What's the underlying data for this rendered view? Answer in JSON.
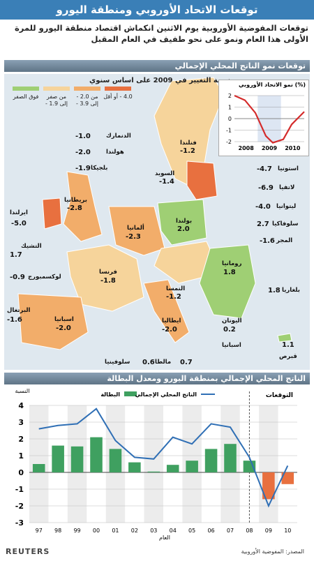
{
  "title": "توقعات الاتحاد الأوروبي ومنطقة اليورو",
  "subtitle": "توقعات المفوضية الأوروبية يوم الاثنين انكماش اقتصاد منطقة اليورو للمرة الأولى هذا العام ونمو على نحو طفيف في العام المقبل",
  "section1_title": "توقعات نمو الناتج المحلي الإجمالي",
  "legend": {
    "title": "نسبة التغيير في 2009 على اساس سنوي",
    "items": [
      {
        "label": "فوق الصفر",
        "color": "#9fcf74"
      },
      {
        "label": "من صفر إلى 1.9 -",
        "color": "#f6d49b"
      },
      {
        "label": "من 2.0 - إلى 3.9 -",
        "color": "#f2ad6a"
      },
      {
        "label": "4.0 - أو أقل",
        "color": "#e8703f"
      }
    ]
  },
  "countries": [
    {
      "name": "فنلندا",
      "value": "-1.2"
    },
    {
      "name": "السويد",
      "value": "-1.4"
    },
    {
      "name": "الدنمارك",
      "value": "-1.0"
    },
    {
      "name": "هولندا",
      "value": "-2.0"
    },
    {
      "name": "بلجيكا",
      "value": "-1.9"
    },
    {
      "name": "بريطانيا",
      "value": "-2.8"
    },
    {
      "name": "ايرلندا",
      "value": "-5.0"
    },
    {
      "name": "ألمانيا",
      "value": "-2.3"
    },
    {
      "name": "بولندا",
      "value": "2.0"
    },
    {
      "name": "استونيا",
      "value": "-4.7"
    },
    {
      "name": "لاتفيا",
      "value": "-6.9"
    },
    {
      "name": "ليتوانيا",
      "value": "-4.0"
    },
    {
      "name": "سلوفاكيا",
      "value": "2.7"
    },
    {
      "name": "المجر",
      "value": "-1.6"
    },
    {
      "name": "التشيك",
      "value": "1.7"
    },
    {
      "name": "لوكسمبورج",
      "value": "-0.9"
    },
    {
      "name": "فرنسا",
      "value": "-1.8"
    },
    {
      "name": "رومانيا",
      "value": "1.8"
    },
    {
      "name": "النمسا",
      "value": "-1.2"
    },
    {
      "name": "البرتغال",
      "value": "-1.6"
    },
    {
      "name": "اسبانيا",
      "value": "-2.0"
    },
    {
      "name": "ايطاليا",
      "value": "-2.0"
    },
    {
      "name": "بلغاريا",
      "value": "1.8"
    },
    {
      "name": "اليونان",
      "value": "0.2"
    },
    {
      "name": "اسبانيا",
      "value": ""
    },
    {
      "name": "سلوفينيا",
      "value": "0.6"
    },
    {
      "name": "مالطا",
      "value": "0.7"
    },
    {
      "name": "قبرص",
      "value": "1.1"
    }
  ],
  "inset_chart": {
    "unit": "(%) نمو الاتحاد الأوروبي",
    "yticks": [
      "2",
      "1",
      "0",
      "-1",
      "-2"
    ],
    "xticks": [
      "2008",
      "2009",
      "2010"
    ],
    "points": [
      [
        0.0,
        2.0
      ],
      [
        0.15,
        1.6
      ],
      [
        0.3,
        0.5
      ],
      [
        0.45,
        -1.5
      ],
      [
        0.55,
        -2.1
      ],
      [
        0.7,
        -1.8
      ],
      [
        0.82,
        -0.5
      ],
      [
        1.0,
        0.6
      ]
    ]
  },
  "section2_title": "الناتج المحلي الإجمالي بمنطقة اليورو ومعدل البطالة",
  "chart_data": {
    "type": "bar",
    "categories": [
      "97",
      "98",
      "99",
      "00",
      "01",
      "02",
      "03",
      "04",
      "05",
      "06",
      "07",
      "08",
      "09",
      "10"
    ],
    "series": [
      {
        "name": "البطالة",
        "type": "bar",
        "values": [
          0.5,
          1.6,
          1.55,
          2.1,
          1.4,
          0.6,
          0.05,
          0.45,
          0.7,
          1.4,
          1.7,
          0.7,
          -1.6,
          -0.7
        ],
        "color": "#3fa060",
        "forecast_color": "#e8703f"
      },
      {
        "name": "الناتج المحلي الإجمالي",
        "type": "line",
        "values": [
          2.6,
          2.8,
          2.9,
          3.8,
          1.9,
          0.9,
          0.8,
          2.1,
          1.7,
          2.9,
          2.7,
          0.9,
          -2.0,
          0.4
        ],
        "color": "#2f6fb5"
      }
    ],
    "forecast_label": "التوقعات",
    "forecast_start_index": 12,
    "ylabel": "النسبة",
    "xlabel": "العام",
    "ylim": [
      -3,
      4
    ],
    "yticks": [
      "4",
      "3",
      "2",
      "1",
      "0",
      "-1",
      "-2",
      "-3"
    ]
  },
  "footer": {
    "source": "المصدر: المفوضية الأوروبية",
    "brand": "REUTERS"
  },
  "colors": {
    "title_bg": "#3a7fb7",
    "bar_green": "#3fa060",
    "bar_red": "#e8703f",
    "line_blue": "#2f6fb5"
  }
}
